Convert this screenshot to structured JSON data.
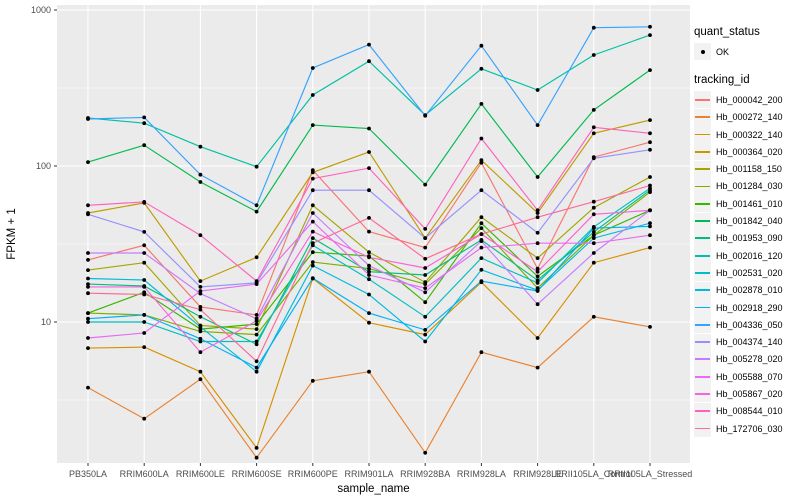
{
  "chart_data": {
    "type": "line",
    "title": "",
    "xlabel": "sample_name",
    "ylabel": "FPKM + 1",
    "y_scale": "log10",
    "y_ticks": [
      10,
      100,
      1000
    ],
    "y_minor_ticks": [
      3.1623,
      31.623,
      316.23
    ],
    "ylim": [
      1.25,
      1150
    ],
    "grid": "on",
    "legend_position": "right",
    "categories": [
      "PB350LA",
      "RRIM600LA",
      "RRIM600LE",
      "RRIM600SE",
      "RRIM600PE",
      "RRIM901LA",
      "RRIM928BA",
      "RRIM928LA",
      "RRIM928LE",
      "RRII105LA_Control",
      "RRII105LA_Stressed"
    ],
    "series": [
      {
        "name": "Hb_000042_200",
        "color": "#F8766D",
        "values": [
          25,
          31,
          12.5,
          11.1,
          94,
          38,
          30,
          105,
          22,
          114,
          142
        ]
      },
      {
        "name": "Hb_000272_140",
        "color": "#EA8331",
        "values": [
          3.8,
          2.4,
          4.3,
          1.35,
          4.2,
          4.8,
          1.45,
          6.4,
          5.1,
          10.8,
          9.3
        ]
      },
      {
        "name": "Hb_000322_140",
        "color": "#D89000",
        "values": [
          6.8,
          6.9,
          4.8,
          1.56,
          19,
          9.9,
          8.3,
          18,
          7.9,
          24,
          30
        ]
      },
      {
        "name": "Hb_000364_020",
        "color": "#C09B00",
        "values": [
          50,
          58,
          18.3,
          26,
          91,
          123,
          34.5,
          109,
          50,
          162,
          197
        ]
      },
      {
        "name": "Hb_001158_150",
        "color": "#A3A500",
        "values": [
          21.5,
          24,
          9.5,
          9.0,
          56,
          28,
          18,
          47,
          25.7,
          54,
          85
        ]
      },
      {
        "name": "Hb_001284_030",
        "color": "#7CAE00",
        "values": [
          11.4,
          11.1,
          8.7,
          8.3,
          24.2,
          22,
          17.5,
          40,
          16.5,
          36,
          68
        ]
      },
      {
        "name": "Hb_001461_010",
        "color": "#39B600",
        "values": [
          11.4,
          15.5,
          9.0,
          9.7,
          28,
          26.5,
          13.4,
          43,
          19.6,
          36,
          52
        ]
      },
      {
        "name": "Hb_001842_040",
        "color": "#00BB4E",
        "values": [
          106,
          136,
          79,
          51,
          183,
          174,
          76,
          250,
          85,
          229,
          412
        ]
      },
      {
        "name": "Hb_001953_090",
        "color": "#00BF7D",
        "values": [
          17.5,
          17,
          10.8,
          7.2,
          34.5,
          21,
          20,
          33.6,
          18.5,
          37.8,
          70
        ]
      },
      {
        "name": "Hb_002016_120",
        "color": "#00C1A3",
        "values": [
          203,
          188,
          133,
          99,
          285,
          470,
          212,
          420,
          307,
          515,
          690
        ]
      },
      {
        "name": "Hb_002531_020",
        "color": "#00BFC4",
        "values": [
          10,
          10,
          7.5,
          7.5,
          31,
          18.8,
          10.8,
          25.7,
          17.8,
          40.7,
          72
        ]
      },
      {
        "name": "Hb_002878_010",
        "color": "#00BAE0",
        "values": [
          19,
          18.6,
          9.3,
          4.8,
          23,
          15,
          7.5,
          21.6,
          16,
          34.5,
          43
        ]
      },
      {
        "name": "Hb_002918_290",
        "color": "#00B0F6",
        "values": [
          10.5,
          11.1,
          7.8,
          5.1,
          19.1,
          11.4,
          8.9,
          18.3,
          15.8,
          40,
          41
        ]
      },
      {
        "name": "Hb_004336_050",
        "color": "#35A2FF",
        "values": [
          200,
          205,
          88,
          56,
          425,
          600,
          210,
          590,
          183,
          770,
          780
        ]
      },
      {
        "name": "Hb_004374_140",
        "color": "#9590FF",
        "values": [
          49,
          37.8,
          16.8,
          17.8,
          70,
          70,
          34.5,
          70,
          37.3,
          112,
          127
        ]
      },
      {
        "name": "Hb_005278_020",
        "color": "#C77CFF",
        "values": [
          27.7,
          27.7,
          15.2,
          10.5,
          50,
          23,
          15.5,
          33,
          13,
          27.7,
          52
        ]
      },
      {
        "name": "Hb_005588_070",
        "color": "#E76BF3",
        "values": [
          7.9,
          8.5,
          15.8,
          17.5,
          44,
          20,
          16.5,
          30,
          32,
          32,
          36
        ]
      },
      {
        "name": "Hb_005867_020",
        "color": "#FA62DB",
        "values": [
          16.8,
          16.8,
          6.4,
          10.2,
          38,
          26,
          22.2,
          36.6,
          21,
          49,
          52
        ]
      },
      {
        "name": "Hb_008544_010",
        "color": "#FF62BC",
        "values": [
          56,
          58.9,
          36,
          18.3,
          83,
          97,
          39.5,
          150,
          52,
          177,
          162
        ]
      },
      {
        "name": "Hb_172706_030",
        "color": "#FF6A98",
        "values": [
          15.3,
          15,
          12,
          5.6,
          32,
          46.5,
          25.4,
          36.6,
          47,
          59,
          75
        ]
      }
    ],
    "legend": {
      "quant_status_title": "quant_status",
      "ok_label": "OK",
      "tracking_id_title": "tracking_id"
    },
    "colors": {
      "panel_bg": "#EBEBEB",
      "grid": "#FFFFFF",
      "tick_text": "#4D4D4D",
      "axis_title_text": "#000000",
      "point": "#000000",
      "tick_mark": "#333333",
      "legend_key_bg": "#F2F2F2"
    }
  }
}
